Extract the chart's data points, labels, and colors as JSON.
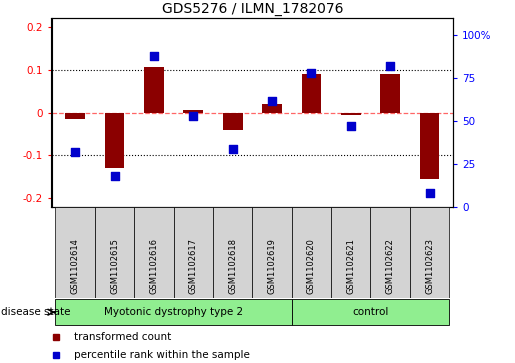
{
  "title": "GDS5276 / ILMN_1782076",
  "samples": [
    "GSM1102614",
    "GSM1102615",
    "GSM1102616",
    "GSM1102617",
    "GSM1102618",
    "GSM1102619",
    "GSM1102620",
    "GSM1102621",
    "GSM1102622",
    "GSM1102623"
  ],
  "transformed_count": [
    -0.015,
    -0.13,
    0.105,
    0.005,
    -0.04,
    0.02,
    0.09,
    -0.005,
    0.09,
    -0.155
  ],
  "percentile_rank": [
    32,
    18,
    88,
    53,
    34,
    62,
    78,
    47,
    82,
    8
  ],
  "groups": [
    {
      "label": "Myotonic dystrophy type 2",
      "start": 0,
      "end": 6,
      "color": "#90EE90"
    },
    {
      "label": "control",
      "start": 6,
      "end": 10,
      "color": "#90EE90"
    }
  ],
  "ylim_left": [
    -0.22,
    0.22
  ],
  "ylim_right": [
    0,
    110
  ],
  "yticks_left": [
    -0.2,
    -0.1,
    0.0,
    0.1,
    0.2
  ],
  "yticks_right": [
    0,
    25,
    50,
    75,
    100
  ],
  "ytick_labels_left": [
    "-0.2",
    "-0.1",
    "0",
    "0.1",
    "0.2"
  ],
  "ytick_labels_right": [
    "0",
    "25",
    "50",
    "75",
    "100%"
  ],
  "bar_color": "#8B0000",
  "dot_color": "#0000CC",
  "zero_line_color": "#FF6666",
  "grid_color": "#000000",
  "disease_state_label": "disease state",
  "legend_items": [
    {
      "label": "transformed count",
      "color": "#8B0000"
    },
    {
      "label": "percentile rank within the sample",
      "color": "#0000CC"
    }
  ],
  "bar_width": 0.5,
  "dot_size": 30,
  "fig_width": 5.15,
  "fig_height": 3.63
}
